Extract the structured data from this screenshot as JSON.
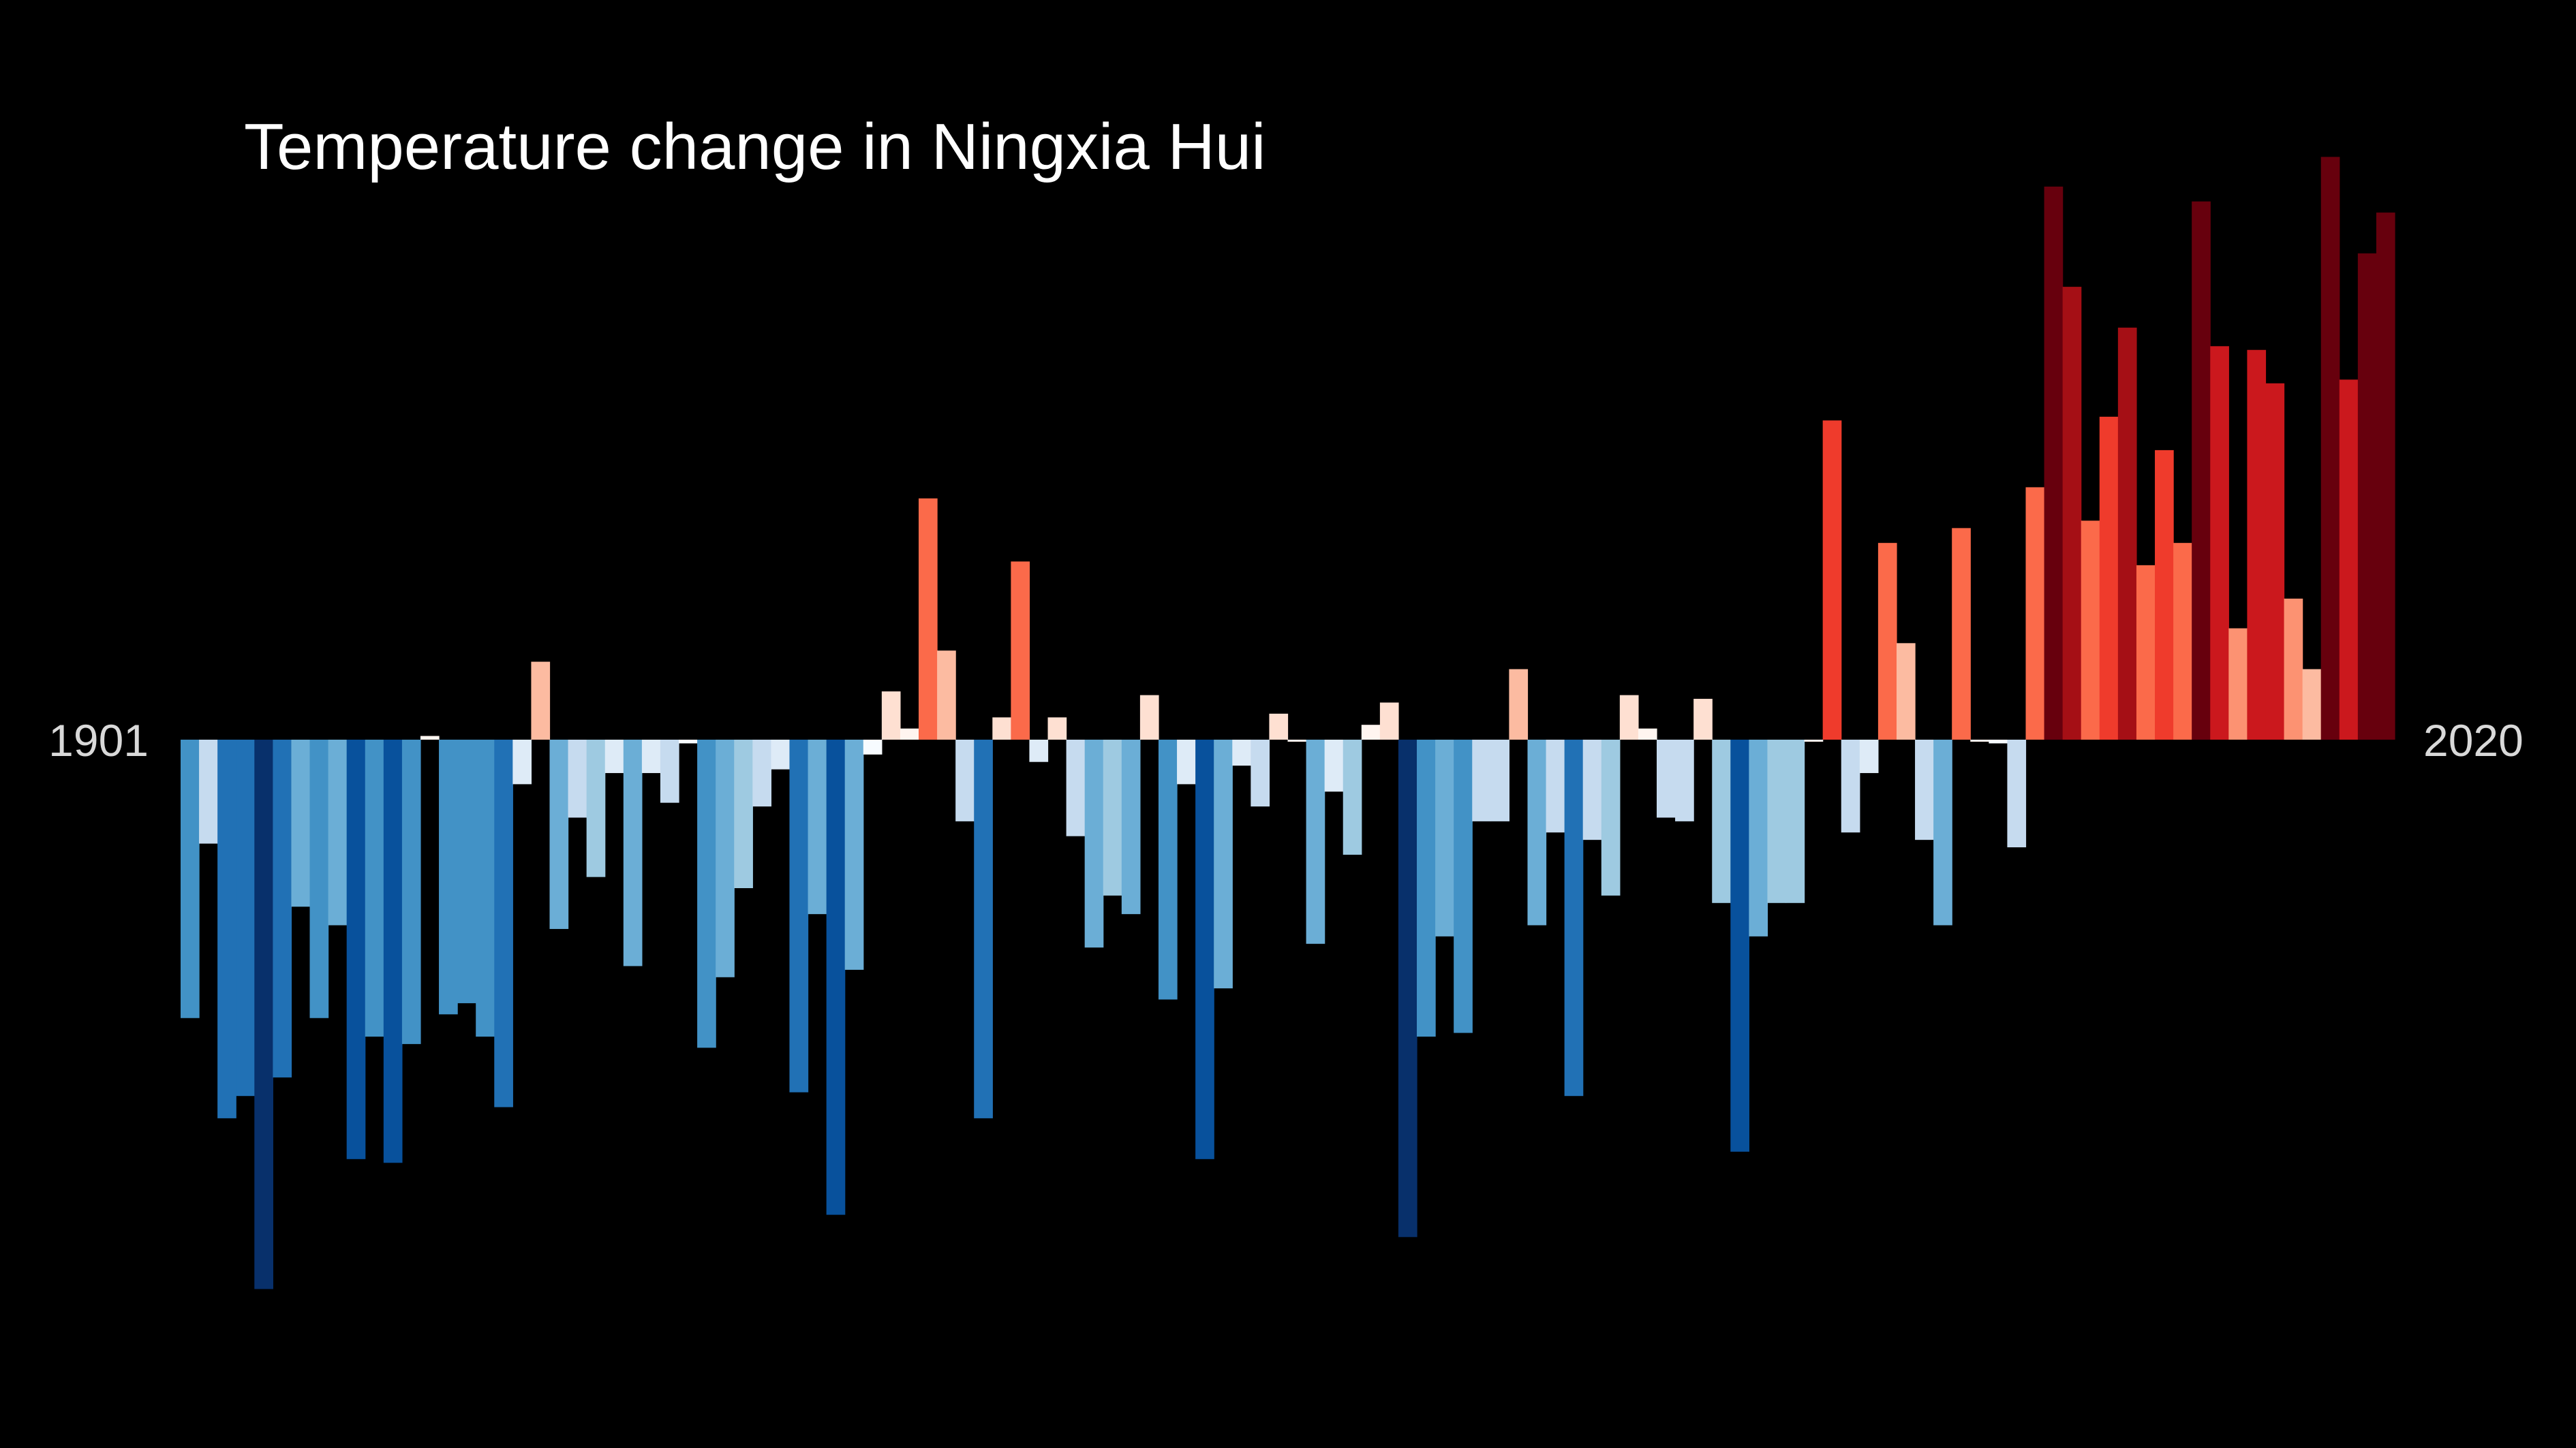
{
  "chart_data": {
    "type": "bar",
    "title": "Temperature change in Ningxia Hui",
    "start_label": "1901",
    "end_label": "2020",
    "x_start": 1901,
    "x_end": 2020,
    "baseline": 0,
    "ylim": [
      -1.5,
      1.6
    ],
    "grid": false,
    "legend": "none",
    "colors": {
      "background": "#000000",
      "cold_scale": [
        "#f7fbff",
        "#deebf7",
        "#c6dbef",
        "#9ecae1",
        "#6baed6",
        "#4292c6",
        "#2171b5",
        "#08519c",
        "#08306b"
      ],
      "warm_scale": [
        "#fff5f0",
        "#fee0d2",
        "#fcbba1",
        "#fc9272",
        "#fb6a4a",
        "#ef3b2c",
        "#cb181d",
        "#a50f15",
        "#67000d"
      ]
    },
    "values": [
      -0.75,
      -0.28,
      -1.02,
      -0.96,
      -1.48,
      -0.91,
      -0.45,
      -0.75,
      -0.5,
      -1.13,
      -0.8,
      -1.14,
      -0.82,
      0.01,
      -0.74,
      -0.71,
      -0.8,
      -0.99,
      -0.12,
      0.21,
      -0.51,
      -0.21,
      -0.37,
      -0.09,
      -0.61,
      -0.09,
      -0.17,
      -0.01,
      -0.83,
      -0.64,
      -0.4,
      -0.18,
      -0.08,
      -0.95,
      -0.47,
      -1.28,
      -0.62,
      -0.04,
      0.13,
      0.03,
      0.65,
      0.24,
      -0.22,
      -1.02,
      0.06,
      0.48,
      -0.06,
      0.06,
      -0.26,
      -0.56,
      -0.42,
      -0.47,
      0.12,
      -0.7,
      -0.12,
      -1.13,
      -0.67,
      -0.07,
      -0.18,
      0.07,
      0.0,
      -0.55,
      -0.14,
      -0.31,
      0.04,
      0.1,
      -1.34,
      -0.8,
      -0.53,
      -0.79,
      -0.22,
      -0.22,
      0.19,
      -0.5,
      -0.25,
      -0.96,
      -0.27,
      -0.42,
      0.12,
      0.03,
      -0.21,
      -0.22,
      0.11,
      -0.44,
      -1.11,
      -0.53,
      -0.44,
      -0.44,
      0.0,
      0.86,
      -0.25,
      -0.09,
      0.53,
      0.26,
      -0.27,
      -0.5,
      0.57,
      0.0,
      -0.01,
      -0.29,
      0.68,
      1.49,
      1.22,
      0.59,
      0.87,
      1.11,
      0.47,
      0.78,
      0.53,
      1.45,
      1.06,
      0.3,
      1.05,
      0.96,
      0.38,
      0.19,
      1.57,
      0.97,
      1.31,
      1.42
    ]
  }
}
